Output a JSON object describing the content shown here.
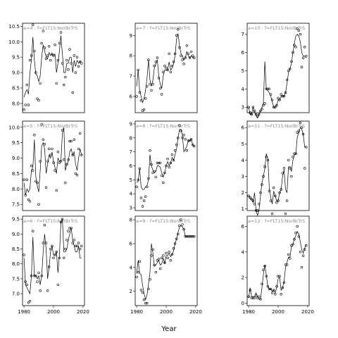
{
  "xlabel": "Year",
  "xticks": [
    1980,
    2000,
    2020
  ],
  "xlim": [
    1979,
    2021
  ],
  "chart_data": [
    {
      "type": "line",
      "strip": "a=4 : f=FLT15:NorBrTrS",
      "ylim": [
        7.7,
        10.6
      ],
      "yticks": [
        8.0,
        8.5,
        9.0,
        9.5,
        10.0,
        10.5
      ],
      "x": [
        1980,
        1981,
        1982,
        1983,
        1984,
        1985,
        1986,
        1987,
        1988,
        1989,
        1990,
        1991,
        1992,
        1993,
        1994,
        1995,
        1996,
        1997,
        1998,
        1999,
        2000,
        2001,
        2002,
        2003,
        2004,
        2005,
        2006,
        2007,
        2008,
        2009,
        2010,
        2011,
        2012,
        2013,
        2014,
        2015,
        2016,
        2017,
        2018,
        2019
      ],
      "points": [
        7.8,
        7.95,
        8.6,
        7.95,
        9.4,
        9.55,
        10.55,
        9.7,
        9.0,
        8.15,
        8.1,
        8.65,
        9.95,
        10.35,
        9.8,
        9.45,
        9.55,
        9.85,
        9.4,
        9.6,
        9.55,
        9.9,
        8.65,
        9.4,
        9.95,
        10.3,
        9.3,
        8.6,
        8.85,
        9.4,
        9.1,
        9.75,
        9.3,
        8.35,
        9.55,
        9.0,
        9.5,
        9.2,
        9.35,
        9.3
      ],
      "fit": [
        8.2,
        8.35,
        8.45,
        8.3,
        9.0,
        9.4,
        10.15,
        9.4,
        8.95,
        8.9,
        8.7,
        8.9,
        9.5,
        9.9,
        9.7,
        9.5,
        9.45,
        9.65,
        9.55,
        9.6,
        9.55,
        9.6,
        9.0,
        9.3,
        9.7,
        10.2,
        9.6,
        9.0,
        9.0,
        9.3,
        9.3,
        9.5,
        9.5,
        9.0,
        9.4,
        9.2,
        9.4,
        9.3,
        9.35,
        9.35
      ]
    },
    {
      "type": "line",
      "strip": "a=7 : f=FLT15:NorBrTrS",
      "ylim": [
        5.2,
        9.6
      ],
      "yticks": [
        6,
        7,
        8,
        9
      ],
      "x": [
        1980,
        1981,
        1982,
        1983,
        1984,
        1985,
        1986,
        1987,
        1988,
        1989,
        1990,
        1991,
        1992,
        1993,
        1994,
        1995,
        1996,
        1997,
        1998,
        1999,
        2000,
        2001,
        2002,
        2003,
        2004,
        2005,
        2006,
        2007,
        2008,
        2009,
        2010,
        2011,
        2012,
        2013,
        2014,
        2015,
        2016,
        2017,
        2018,
        2019
      ],
      "points": [
        6.0,
        7.3,
        6.2,
        5.8,
        5.3,
        5.35,
        5.9,
        6.5,
        7.8,
        6.6,
        6.3,
        6.6,
        7.5,
        7.7,
        7.9,
        6.9,
        6.4,
        6.1,
        7.2,
        7.5,
        7.4,
        7.3,
        8.1,
        7.2,
        7.5,
        7.7,
        8.1,
        9.0,
        9.3,
        8.4,
        8.0,
        7.8,
        7.6,
        7.9,
        8.5,
        8.1,
        7.9,
        8.2,
        8.0,
        7.9
      ],
      "fit": [
        6.5,
        7.3,
        6.3,
        6.0,
        5.7,
        5.9,
        6.3,
        6.9,
        7.8,
        6.8,
        6.5,
        6.8,
        7.4,
        7.6,
        7.8,
        7.0,
        6.6,
        6.4,
        7.0,
        7.3,
        7.3,
        7.3,
        7.7,
        7.3,
        7.4,
        7.6,
        8.0,
        8.8,
        9.1,
        8.5,
        8.1,
        8.0,
        7.8,
        7.9,
        8.2,
        8.0,
        7.9,
        8.0,
        7.9,
        7.9
      ]
    },
    {
      "type": "line",
      "strip": "a=10 : f=FLT15:NorBrTrS",
      "ylim": [
        2.7,
        7.6
      ],
      "yticks": [
        3,
        4,
        5,
        6,
        7
      ],
      "x": [
        1980,
        1981,
        1982,
        1983,
        1984,
        1985,
        1986,
        1987,
        1988,
        1989,
        1990,
        1991,
        1992,
        1993,
        1994,
        1995,
        1996,
        1997,
        1998,
        1999,
        2000,
        2001,
        2002,
        2003,
        2004,
        2005,
        2006,
        2007,
        2008,
        2009,
        2010,
        2011,
        2012,
        2013,
        2014,
        2015,
        2016,
        2017,
        2018,
        2019
      ],
      "points": [
        3.0,
        2.7,
        2.6,
        3.0,
        2.8,
        2.6,
        2.5,
        2.6,
        2.8,
        2.9,
        3.1,
        3.2,
        4.0,
        4.0,
        4.0,
        3.7,
        3.4,
        3.0,
        3.0,
        3.1,
        3.5,
        3.4,
        3.7,
        3.6,
        3.6,
        3.8,
        4.5,
        5.0,
        5.1,
        5.5,
        6.0,
        6.4,
        6.3,
        7.3,
        7.2,
        7.0,
        5.2,
        5.7,
        6.3,
        5.8
      ],
      "fit": [
        3.0,
        2.6,
        2.6,
        3.0,
        2.7,
        2.6,
        2.4,
        2.6,
        2.8,
        3.0,
        3.2,
        5.5,
        4.0,
        3.9,
        3.8,
        3.6,
        3.3,
        3.0,
        3.0,
        3.1,
        3.4,
        3.4,
        3.6,
        3.6,
        3.6,
        3.8,
        4.3,
        4.9,
        5.1,
        5.4,
        6.0,
        6.5,
        6.9,
        7.0,
        6.9,
        6.6,
        6.0,
        5.8,
        5.8,
        5.7
      ]
    },
    {
      "type": "line",
      "strip": "a=5 : f=FLT15:NorBrTrS",
      "ylim": [
        7.3,
        10.2
      ],
      "yticks": [
        7.5,
        8.0,
        8.5,
        9.0,
        9.5,
        10.0
      ],
      "x": [
        1980,
        1981,
        1982,
        1983,
        1984,
        1985,
        1986,
        1987,
        1988,
        1989,
        1990,
        1991,
        1992,
        1993,
        1994,
        1995,
        1996,
        1997,
        1998,
        1999,
        2000,
        2001,
        2002,
        2003,
        2004,
        2005,
        2006,
        2007,
        2008,
        2009,
        2010,
        2011,
        2012,
        2013,
        2014,
        2015,
        2016,
        2017,
        2018,
        2019
      ],
      "points": [
        8.3,
        7.8,
        8.3,
        7.65,
        7.6,
        8.75,
        8.6,
        9.75,
        8.25,
        8.2,
        7.5,
        8.9,
        10.1,
        9.6,
        9.45,
        8.05,
        8.9,
        9.3,
        9.1,
        9.3,
        8.85,
        8.6,
        7.95,
        9.2,
        8.85,
        8.9,
        9.9,
        8.95,
        8.2,
        8.8,
        8.95,
        9.55,
        9.55,
        9.1,
        9.6,
        8.5,
        8.45,
        9.3,
        9.8,
        9.1
      ],
      "fit": [
        8.2,
        7.8,
        8.0,
        7.9,
        8.0,
        8.6,
        8.7,
        9.6,
        8.4,
        8.1,
        7.9,
        8.6,
        9.4,
        9.5,
        9.3,
        8.5,
        8.8,
        9.1,
        9.0,
        9.2,
        8.9,
        8.7,
        8.5,
        9.0,
        8.9,
        8.9,
        9.8,
        10.0,
        8.6,
        8.8,
        8.9,
        9.2,
        9.3,
        9.1,
        9.2,
        8.8,
        8.6,
        9.0,
        9.3,
        9.1
      ]
    },
    {
      "type": "line",
      "strip": "a=8 : f=FLT15:NorBrTrS",
      "ylim": [
        2.8,
        9.2
      ],
      "yticks": [
        3,
        4,
        5,
        6,
        7,
        8,
        9
      ],
      "x": [
        1980,
        1981,
        1982,
        1983,
        1984,
        1985,
        1986,
        1987,
        1988,
        1989,
        1990,
        1991,
        1992,
        1993,
        1994,
        1995,
        1996,
        1997,
        1998,
        1999,
        2000,
        2001,
        2002,
        2003,
        2004,
        2005,
        2006,
        2007,
        2008,
        2009,
        2010,
        2011,
        2012,
        2013,
        2014,
        2015,
        2016,
        2017,
        2018,
        2019
      ],
      "points": [
        4.5,
        5.0,
        5.8,
        3.7,
        3.1,
        3.5,
        3.8,
        4.5,
        5.1,
        7.1,
        6.1,
        5.5,
        5.6,
        5.2,
        6.2,
        6.2,
        6.2,
        5.3,
        4.8,
        5.5,
        6.0,
        6.5,
        5.9,
        6.2,
        6.8,
        6.4,
        7.1,
        7.5,
        8.0,
        8.9,
        8.5,
        8.0,
        8.2,
        7.9,
        7.1,
        7.8,
        7.8,
        7.9,
        7.5,
        7.4
      ],
      "fit": [
        4.8,
        4.9,
        5.8,
        4.5,
        4.3,
        4.3,
        4.5,
        4.6,
        5.0,
        6.8,
        6.0,
        5.7,
        5.5,
        5.6,
        6.0,
        6.0,
        5.9,
        5.5,
        5.2,
        5.5,
        6.0,
        6.3,
        6.0,
        6.2,
        6.6,
        6.4,
        6.8,
        7.2,
        8.0,
        8.6,
        8.6,
        8.2,
        7.0,
        7.2,
        7.4,
        7.8,
        7.8,
        7.9,
        7.5,
        7.4
      ]
    },
    {
      "type": "line",
      "strip": "a=11 : f=FLT15:NorBrTrS",
      "ylim": [
        0.9,
        6.4
      ],
      "yticks": [
        1,
        2,
        3,
        4,
        5,
        6
      ],
      "x": [
        1980,
        1981,
        1982,
        1983,
        1984,
        1985,
        1986,
        1987,
        1988,
        1989,
        1990,
        1991,
        1992,
        1993,
        1994,
        1995,
        1996,
        1997,
        1998,
        1999,
        2000,
        2001,
        2002,
        2003,
        2004,
        2005,
        2006,
        2007,
        2008,
        2009,
        2010,
        2011,
        2012,
        2013,
        2014,
        2015,
        2016,
        2017,
        2018,
        2019
      ],
      "points": [
        1.8,
        1.7,
        1.6,
        1.5,
        1.3,
        0.9,
        0.9,
        1.3,
        2.0,
        2.5,
        3.0,
        3.6,
        4.2,
        4.0,
        2.1,
        1.5,
        0.7,
        2.3,
        1.8,
        1.4,
        1.5,
        2.0,
        2.2,
        3.2,
        3.5,
        0.7,
        1.5,
        4.0,
        3.5,
        3.0,
        4.2,
        4.4,
        4.4,
        5.7,
        5.8,
        6.3,
        6.0,
        5.6,
        3.5,
        4.8
      ],
      "fit": [
        1.8,
        1.6,
        1.6,
        1.4,
        2.0,
        0.9,
        0.6,
        0.9,
        1.8,
        2.6,
        3.0,
        3.5,
        4.4,
        4.1,
        2.3,
        1.7,
        1.3,
        2.1,
        1.8,
        1.5,
        1.5,
        2.0,
        2.2,
        3.0,
        3.4,
        2.2,
        2.0,
        3.6,
        3.6,
        3.3,
        4.0,
        4.3,
        4.4,
        5.4,
        5.7,
        6.0,
        5.9,
        5.6,
        4.8,
        4.8
      ]
    },
    {
      "type": "line",
      "strip": "a=6 : f=FLT15:NorBrTrS",
      "ylim": [
        6.6,
        9.6
      ],
      "yticks": [
        7.0,
        7.5,
        8.0,
        8.5,
        9.0,
        9.5
      ],
      "x": [
        1980,
        1981,
        1982,
        1983,
        1984,
        1985,
        1986,
        1987,
        1988,
        1989,
        1990,
        1991,
        1992,
        1993,
        1994,
        1995,
        1996,
        1997,
        1998,
        1999,
        2000,
        2001,
        2002,
        2003,
        2004,
        2005,
        2006,
        2007,
        2008,
        2009,
        2010,
        2011,
        2012,
        2013,
        2014,
        2015,
        2016,
        2017,
        2018,
        2019
      ],
      "points": [
        8.3,
        7.4,
        7.3,
        6.7,
        6.75,
        7.6,
        9.1,
        7.6,
        7.6,
        7.4,
        7.7,
        7.1,
        7.6,
        8.7,
        9.3,
        8.7,
        7.1,
        7.9,
        8.5,
        8.6,
        8.2,
        8.3,
        8.4,
        7.3,
        8.2,
        9.4,
        9.5,
        8.2,
        8.5,
        8.8,
        9.1,
        9.2,
        9.2,
        8.7,
        8.8,
        8.6,
        8.6,
        8.7,
        8.5,
        8.6
      ],
      "fit": [
        8.2,
        7.3,
        7.2,
        7.1,
        7.0,
        7.6,
        8.9,
        7.6,
        7.6,
        7.5,
        7.6,
        7.3,
        7.6,
        8.4,
        9.0,
        8.5,
        7.5,
        7.9,
        8.4,
        8.6,
        8.3,
        8.3,
        8.4,
        7.7,
        8.3,
        9.4,
        9.5,
        8.4,
        8.4,
        8.5,
        8.8,
        9.0,
        9.2,
        8.8,
        8.6,
        8.4,
        8.4,
        8.6,
        8.2,
        8.2
      ]
    },
    {
      "type": "line",
      "strip": "a=9 : f=FLT15:NorBrTrS",
      "ylim": [
        0.8,
        8.3
      ],
      "yticks": [
        2,
        4,
        6,
        8
      ],
      "x": [
        1980,
        1981,
        1982,
        1983,
        1984,
        1985,
        1986,
        1987,
        1988,
        1989,
        1990,
        1991,
        1992,
        1993,
        1994,
        1995,
        1996,
        1997,
        1998,
        1999,
        2000,
        2001,
        2002,
        2003,
        2004,
        2005,
        2006,
        2007,
        2008,
        2009,
        2010,
        2011,
        2012,
        2013,
        2014,
        2015,
        2016,
        2017,
        2018,
        2019
      ],
      "points": [
        3.2,
        3.6,
        4.5,
        2.1,
        1.9,
        1.3,
        1.0,
        1.0,
        2.2,
        3.0,
        5.0,
        5.5,
        4.2,
        3.6,
        4.6,
        4.7,
        3.9,
        4.8,
        5.0,
        4.4,
        5.2,
        4.8,
        5.3,
        4.6,
        5.1,
        5.6,
        6.0,
        6.4,
        6.8,
        7.5,
        8.0,
        7.6,
        7.2,
        6.6,
        6.6,
        6.6,
        6.6,
        6.6,
        6.6,
        6.6
      ],
      "fit": [
        3.5,
        4.6,
        3.5,
        3.4,
        2.5,
        1.8,
        1.3,
        1.7,
        2.6,
        3.6,
        6.0,
        5.2,
        4.1,
        4.2,
        4.4,
        4.6,
        4.2,
        4.3,
        4.8,
        4.3,
        5.0,
        5.0,
        5.2,
        4.9,
        5.1,
        5.4,
        6.0,
        6.4,
        6.9,
        7.4,
        7.5,
        7.4,
        7.2,
        6.6,
        6.6,
        6.6,
        6.6,
        6.6,
        6.6,
        6.6
      ]
    },
    {
      "type": "line",
      "strip": "a=12 : f=FLT15:NorBrTrS",
      "ylim": [
        -0.2,
        6.8
      ],
      "yticks": [
        0,
        2,
        4,
        6
      ],
      "x": [
        1980,
        1981,
        1982,
        1983,
        1984,
        1985,
        1986,
        1987,
        1988,
        1989,
        1990,
        1991,
        1992,
        1993,
        1994,
        1995,
        1996,
        1997,
        1998,
        1999,
        2000,
        2001,
        2002,
        2003,
        2004,
        2005,
        2006,
        2007,
        2008,
        2009,
        2010,
        2011,
        2012,
        2013,
        2014,
        2015,
        2016,
        2017,
        2018,
        2019
      ],
      "points": [
        0.5,
        1.0,
        0.4,
        0.4,
        0.4,
        0.6,
        0.4,
        0.5,
        0.3,
        1.5,
        2.6,
        2.9,
        2.1,
        1.3,
        1.1,
        1.1,
        0.8,
        1.0,
        0.7,
        1.3,
        2.1,
        2.1,
        0.7,
        1.2,
        1.6,
        3.0,
        3.0,
        3.8,
        3.5,
        4.5,
        4.6,
        5.0,
        5.5,
        6.0,
        5.2,
        4.0,
        2.8,
        3.7,
        4.2,
        4.5
      ],
      "fit": [
        0.4,
        1.2,
        0.5,
        0.5,
        0.5,
        0.8,
        0.5,
        0.3,
        0.3,
        1.2,
        2.2,
        3.0,
        2.2,
        1.3,
        1.1,
        1.1,
        0.9,
        1.0,
        0.8,
        1.2,
        1.9,
        2.0,
        1.0,
        1.2,
        1.7,
        2.8,
        3.2,
        3.6,
        3.6,
        4.4,
        4.6,
        5.0,
        5.3,
        5.6,
        5.4,
        4.8,
        4.2,
        3.9,
        4.3,
        4.6
      ]
    }
  ]
}
